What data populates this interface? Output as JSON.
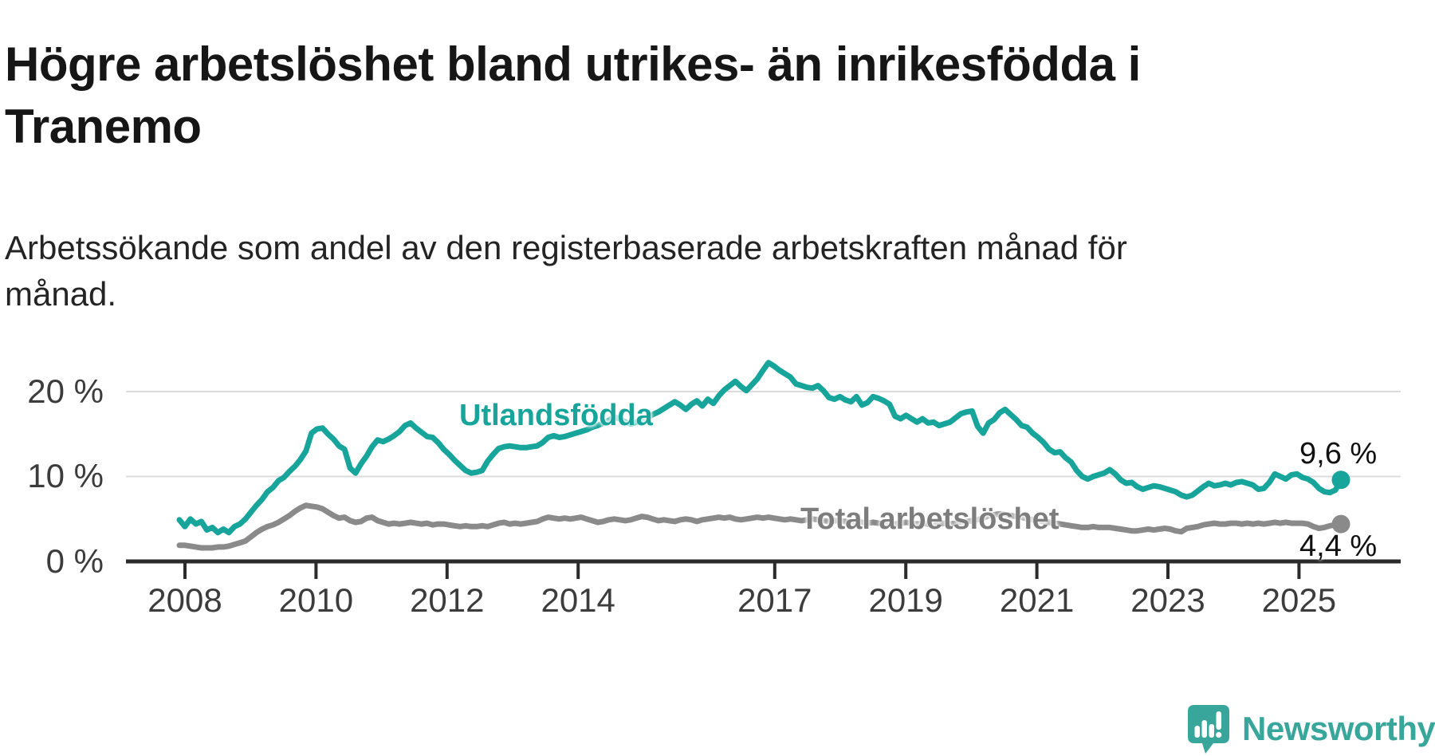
{
  "title": "Högre arbetslöshet bland utrikes- än inrikesfödda i Tranemo",
  "title_lines": [
    "Högre arbetslöshet bland utrikes- än inrikesfödda i",
    "Tranemo"
  ],
  "subtitle": "Arbetssökande som andel av den registerbaserade arbetskraften månad för månad.",
  "subtitle_lines": [
    "Arbetssökande som andel av den registerbaserade arbetskraften månad för",
    "månad."
  ],
  "colors": {
    "foreign_line": "#17a59b",
    "total_line": "#8a8a8a",
    "foreign_label": "#17a59b",
    "total_label": "#7d7d7d",
    "axis": "#2b2b2b",
    "grid": "#dcdcdc",
    "tick_text": "#3c3c3c",
    "title_text": "#161616",
    "value_text": "#111111",
    "logo": "#38a69b"
  },
  "y_axis": {
    "labels": [
      "20 %",
      "10 %",
      "0 %"
    ],
    "values": [
      20,
      10,
      0
    ]
  },
  "x_axis": {
    "tick_years": [
      2008,
      2010,
      2012,
      2014,
      2017,
      2019,
      2021,
      2023,
      2025
    ]
  },
  "series_labels": {
    "foreign": "Utlandsfödda",
    "total": "Total arbetslöshet"
  },
  "end_labels": {
    "foreign": "9,6 %",
    "total": "4,4 %"
  },
  "logo": {
    "text": "Newsworthy"
  },
  "chart_data": {
    "type": "line",
    "frequency": "monthly",
    "start": {
      "year": 2008,
      "month": 1
    },
    "end": {
      "year": 2025,
      "month": 8
    },
    "unit": "percent of registered labour force",
    "ylim": [
      0,
      25
    ],
    "y_ticks": [
      0,
      10,
      20
    ],
    "x_ticks": [
      2008,
      2010,
      2012,
      2014,
      2017,
      2019,
      2021,
      2023,
      2025
    ],
    "grid": "horizontal",
    "legend_position": "inline-labels",
    "series": [
      {
        "name": "Utlandsfödda",
        "color": "#17a59b",
        "end_value_label": "9,6 %",
        "values": [
          4.9,
          4.1,
          5.0,
          4.4,
          4.7,
          3.7,
          4.0,
          3.4,
          3.8,
          3.4,
          4.1,
          4.4,
          5.0,
          5.8,
          6.6,
          7.3,
          8.2,
          8.7,
          9.5,
          9.9,
          10.6,
          11.2,
          12.0,
          13.0,
          15.1,
          15.6,
          15.7,
          15.0,
          14.4,
          13.6,
          13.2,
          11.0,
          10.4,
          11.5,
          12.4,
          13.5,
          14.3,
          14.1,
          14.4,
          14.8,
          15.3,
          16.0,
          16.3,
          15.7,
          15.2,
          14.7,
          14.6,
          14.0,
          13.2,
          12.6,
          11.9,
          11.3,
          10.7,
          10.4,
          10.5,
          10.7,
          11.8,
          12.6,
          13.3,
          13.5,
          13.6,
          13.5,
          13.4,
          13.4,
          13.5,
          13.6,
          14.0,
          14.6,
          14.8,
          14.6,
          14.7,
          14.9,
          15.1,
          15.3,
          15.5,
          15.8,
          16.0,
          16.3,
          16.6,
          17.0,
          16.8,
          16.4,
          16.2,
          16.4,
          16.6,
          16.9,
          17.3,
          17.6,
          18.0,
          18.4,
          18.8,
          18.4,
          17.9,
          18.5,
          18.9,
          18.3,
          19.1,
          18.6,
          19.5,
          20.2,
          20.7,
          21.2,
          20.6,
          20.1,
          20.8,
          21.5,
          22.5,
          23.4,
          23.0,
          22.5,
          22.1,
          21.7,
          20.9,
          20.7,
          20.5,
          20.4,
          20.7,
          20.1,
          19.3,
          19.1,
          19.4,
          19.0,
          18.8,
          19.4,
          18.4,
          18.7,
          19.4,
          19.2,
          18.9,
          18.5,
          17.1,
          16.8,
          17.2,
          16.8,
          16.4,
          16.8,
          16.3,
          16.4,
          16.0,
          16.2,
          16.4,
          16.9,
          17.4,
          17.6,
          17.7,
          15.9,
          15.1,
          16.3,
          16.7,
          17.5,
          17.9,
          17.3,
          16.7,
          16.0,
          15.8,
          15.1,
          14.6,
          14.0,
          13.2,
          12.8,
          12.9,
          12.2,
          11.7,
          10.7,
          10.0,
          9.7,
          10.0,
          10.2,
          10.4,
          10.8,
          10.3,
          9.6,
          9.2,
          9.3,
          8.8,
          8.5,
          8.7,
          8.9,
          8.8,
          8.6,
          8.4,
          8.2,
          7.8,
          7.6,
          7.8,
          8.3,
          8.8,
          9.2,
          8.9,
          9.0,
          9.2,
          9.0,
          9.3,
          9.4,
          9.2,
          9.0,
          8.5,
          8.6,
          9.3,
          10.3,
          10.0,
          9.7,
          10.2,
          10.3,
          9.9,
          9.7,
          9.3,
          8.6,
          8.2,
          8.1,
          8.4,
          9.6
        ]
      },
      {
        "name": "Total arbetslöshet",
        "color": "#8a8a8a",
        "end_value_label": "4,4 %",
        "values": [
          1.9,
          1.9,
          1.8,
          1.7,
          1.6,
          1.6,
          1.6,
          1.7,
          1.7,
          1.8,
          2.0,
          2.2,
          2.4,
          2.9,
          3.4,
          3.8,
          4.1,
          4.3,
          4.6,
          5.0,
          5.4,
          5.9,
          6.3,
          6.6,
          6.5,
          6.4,
          6.2,
          5.8,
          5.4,
          5.1,
          5.2,
          4.8,
          4.6,
          4.7,
          5.1,
          5.2,
          4.8,
          4.6,
          4.4,
          4.5,
          4.4,
          4.5,
          4.6,
          4.5,
          4.4,
          4.5,
          4.3,
          4.4,
          4.4,
          4.3,
          4.2,
          4.1,
          4.2,
          4.1,
          4.1,
          4.2,
          4.1,
          4.3,
          4.5,
          4.6,
          4.4,
          4.5,
          4.4,
          4.5,
          4.6,
          4.7,
          5.0,
          5.2,
          5.1,
          5.0,
          5.1,
          5.0,
          5.1,
          5.2,
          5.0,
          4.8,
          4.6,
          4.7,
          4.9,
          5.0,
          4.9,
          4.8,
          4.9,
          5.1,
          5.3,
          5.2,
          5.0,
          4.8,
          4.9,
          4.8,
          4.7,
          4.9,
          5.0,
          4.9,
          4.7,
          4.9,
          5.0,
          5.1,
          5.2,
          5.1,
          5.2,
          5.0,
          4.9,
          5.0,
          5.1,
          5.2,
          5.1,
          5.2,
          5.1,
          5.0,
          4.9,
          5.0,
          4.9,
          4.8,
          4.9,
          5.0,
          4.9,
          4.8,
          4.7,
          4.8,
          4.8,
          4.7,
          4.6,
          4.7,
          4.6,
          4.5,
          4.6,
          4.5,
          4.4,
          4.5,
          4.4,
          4.5,
          4.6,
          4.5,
          4.4,
          4.5,
          4.4,
          4.3,
          4.4,
          4.5,
          4.4,
          4.5,
          4.6,
          4.7,
          4.8,
          4.9,
          5.1,
          5.4,
          5.5,
          5.6,
          5.5,
          5.4,
          5.3,
          5.2,
          5.0,
          4.9,
          4.8,
          4.7,
          4.6,
          4.5,
          4.4,
          4.3,
          4.2,
          4.1,
          4.0,
          4.0,
          4.1,
          4.0,
          4.0,
          4.0,
          3.9,
          3.8,
          3.7,
          3.6,
          3.6,
          3.7,
          3.8,
          3.7,
          3.8,
          3.9,
          3.8,
          3.6,
          3.5,
          3.9,
          4.0,
          4.1,
          4.3,
          4.4,
          4.5,
          4.4,
          4.4,
          4.5,
          4.5,
          4.4,
          4.5,
          4.4,
          4.5,
          4.4,
          4.5,
          4.6,
          4.5,
          4.6,
          4.5,
          4.5,
          4.5,
          4.4,
          4.1,
          3.9,
          4.0,
          4.2,
          4.3,
          4.4
        ]
      }
    ]
  }
}
